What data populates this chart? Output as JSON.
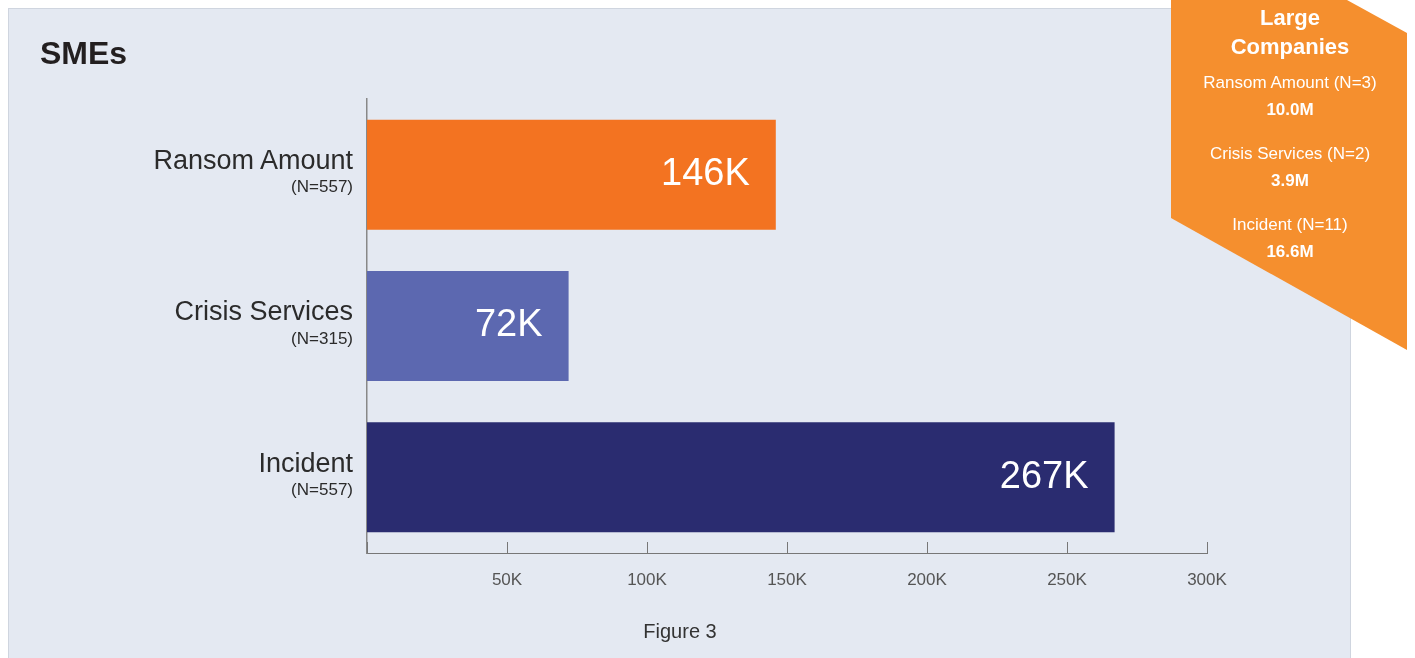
{
  "chart_data": [
    {
      "type": "bar",
      "orientation": "horizontal",
      "title": "SMEs",
      "categories": [
        "Ransom Amount\n(N=557)",
        "Crisis Services\n(N=315)",
        "Incident\n(N=557)"
      ],
      "values": [
        146000,
        72000,
        267000
      ],
      "colors": [
        "#f37321",
        "#5c68b0",
        "#2a2c70"
      ],
      "value_labels": [
        "146K",
        "72K",
        "267K"
      ],
      "xlim": [
        0,
        300000
      ],
      "xticks": [
        {
          "value": 0,
          "label": null
        },
        {
          "value": 50000,
          "label": "50K"
        },
        {
          "value": 100000,
          "label": "100K"
        },
        {
          "value": 150000,
          "label": "150K"
        },
        {
          "value": 200000,
          "label": "200K"
        },
        {
          "value": 250000,
          "label": "250K"
        },
        {
          "value": 300000,
          "label": "300K"
        }
      ],
      "annotations": [
        "Figure 3"
      ]
    },
    {
      "type": "other",
      "title": "Large Companies",
      "annotations": [
        "Ransom Amount (N=3)",
        "10.0M",
        "Crisis Services (N=2)",
        "3.9M",
        "Incident (N=11)",
        "16.6M"
      ]
    }
  ]
}
